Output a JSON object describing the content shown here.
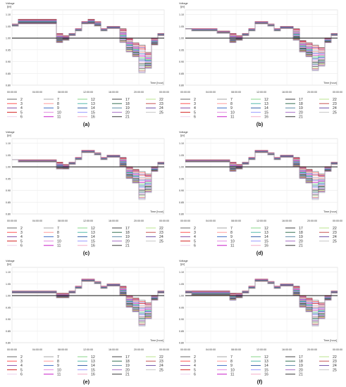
{
  "chart_data": [
    {
      "panel_label": "(a)",
      "type": "line",
      "step": true,
      "ylabel": "Voltage",
      "yunit": "[pu]",
      "xlabel": "Time [hour]",
      "ylim": [
        0.8,
        1.12
      ],
      "yticks": [
        "1.10",
        "1.05",
        "1.00",
        "0.95",
        "0.90",
        "0.85",
        "0.80"
      ],
      "xticks": [
        "00:00:00",
        "04:00:00",
        "08:00:00",
        "12:00:00",
        "16:00:00",
        "20:00:00",
        "00:00:00"
      ],
      "reference_line": 1.0,
      "x": [
        0,
        1,
        2,
        3,
        4,
        5,
        6,
        7,
        8,
        9,
        10,
        11,
        12,
        13,
        14,
        15,
        16,
        17,
        18,
        19,
        20,
        21,
        22,
        23
      ],
      "series": [
        {
          "name": "2",
          "values": [
            1.06,
            1.08,
            1.08,
            1.08,
            1.08,
            1.08,
            1.08,
            1.02,
            1.01,
            1.02,
            1.04,
            1.07,
            1.08,
            1.07,
            1.04,
            1.05,
            1.05,
            1.04,
            1.0,
            0.98,
            0.97,
            0.94,
            1.0,
            1.02
          ]
        },
        {
          "name": "25",
          "values": [
            1.05,
            1.06,
            1.06,
            1.06,
            1.06,
            1.06,
            1.06,
            0.98,
            0.99,
            1.01,
            1.03,
            1.06,
            1.06,
            1.05,
            1.03,
            1.04,
            1.04,
            0.98,
            0.94,
            0.92,
            0.85,
            0.87,
            0.97,
            1.01
          ]
        }
      ]
    },
    {
      "panel_label": "(b)",
      "type": "line",
      "step": true,
      "ylabel": "Voltage",
      "yunit": "[pu]",
      "xlabel": "Time [hour]",
      "ylim": [
        0.8,
        1.12
      ],
      "yticks": [
        "1.10",
        "1.05",
        "1.00",
        "0.95",
        "0.90",
        "0.85",
        "0.80"
      ],
      "xticks": [
        "00:00:00",
        "04:00:00",
        "08:00:00",
        "12:00:00",
        "16:00:00",
        "20:00:00",
        "00:00:00"
      ],
      "reference_line": 1.0,
      "x": [
        0,
        1,
        2,
        3,
        4,
        5,
        6,
        7,
        8,
        9,
        10,
        11,
        12,
        13,
        14,
        15,
        16,
        17,
        18,
        19,
        20,
        21,
        22,
        23
      ],
      "series": [
        {
          "name": "2",
          "values": [
            1.04,
            1.04,
            1.04,
            1.04,
            1.04,
            1.03,
            1.03,
            1.02,
            1.01,
            1.02,
            1.04,
            1.07,
            1.07,
            1.06,
            1.04,
            1.05,
            1.05,
            1.04,
            0.99,
            0.98,
            0.97,
            0.96,
            1.0,
            1.02
          ]
        },
        {
          "name": "25",
          "values": [
            1.04,
            1.03,
            1.03,
            1.03,
            1.03,
            1.02,
            1.02,
            0.98,
            0.99,
            1.01,
            1.03,
            1.06,
            1.06,
            1.05,
            1.03,
            1.04,
            1.04,
            0.99,
            0.94,
            0.92,
            0.86,
            0.88,
            0.98,
            1.01
          ]
        }
      ]
    },
    {
      "panel_label": "(c)",
      "type": "line",
      "step": true,
      "ylabel": "Voltage",
      "yunit": "[pu]",
      "xlabel": "Time [hour]",
      "ylim": [
        0.8,
        1.12
      ],
      "yticks": [
        "1.10",
        "1.05",
        "1.00",
        "0.95",
        "0.90",
        "0.85",
        "0.80"
      ],
      "xticks": [
        "00:00:00",
        "04:00:00",
        "08:00:00",
        "12:00:00",
        "16:00:00",
        "20:00:00",
        "00:00:00"
      ],
      "reference_line": 1.0,
      "x": [
        0,
        1,
        2,
        3,
        4,
        5,
        6,
        7,
        8,
        9,
        10,
        11,
        12,
        13,
        14,
        15,
        16,
        17,
        18,
        19,
        20,
        21,
        22,
        23
      ],
      "series": [
        {
          "name": "2",
          "values": [
            1.03,
            1.03,
            1.03,
            1.03,
            1.03,
            1.03,
            1.03,
            1.02,
            1.01,
            1.02,
            1.04,
            1.07,
            1.07,
            1.06,
            1.04,
            1.05,
            1.05,
            1.04,
            1.0,
            0.99,
            0.98,
            0.97,
            1.0,
            1.02
          ]
        },
        {
          "name": "25",
          "values": [
            1.03,
            1.02,
            1.02,
            1.02,
            1.02,
            1.02,
            1.02,
            0.99,
            0.99,
            1.01,
            1.03,
            1.06,
            1.06,
            1.05,
            1.03,
            1.04,
            1.04,
            1.0,
            0.95,
            0.93,
            0.86,
            0.89,
            0.98,
            1.01
          ]
        }
      ]
    },
    {
      "panel_label": "(d)",
      "type": "line",
      "step": true,
      "ylabel": "Voltage",
      "yunit": "[pu]",
      "xlabel": "Time [hour]",
      "ylim": [
        0.8,
        1.12
      ],
      "yticks": [
        "1.10",
        "1.05",
        "1.00",
        "0.95",
        "0.90",
        "0.85",
        "0.80"
      ],
      "xticks": [
        "00:00:00",
        "04:00:00",
        "08:00:00",
        "12:00:00",
        "16:00:00",
        "20:00:00",
        "00:00:00"
      ],
      "reference_line": 1.0,
      "x": [
        0,
        1,
        2,
        3,
        4,
        5,
        6,
        7,
        8,
        9,
        10,
        11,
        12,
        13,
        14,
        15,
        16,
        17,
        18,
        19,
        20,
        21,
        22,
        23
      ],
      "series": [
        {
          "name": "2",
          "values": [
            1.03,
            1.03,
            1.03,
            1.03,
            1.03,
            1.03,
            1.03,
            1.02,
            1.01,
            1.02,
            1.04,
            1.07,
            1.07,
            1.06,
            1.04,
            1.05,
            1.05,
            1.04,
            1.0,
            0.99,
            0.98,
            0.97,
            1.0,
            1.02
          ]
        },
        {
          "name": "25",
          "values": [
            1.02,
            1.02,
            1.02,
            1.02,
            1.02,
            1.02,
            1.02,
            0.98,
            0.99,
            1.01,
            1.03,
            1.06,
            1.06,
            1.05,
            1.03,
            1.04,
            1.04,
            1.0,
            0.95,
            0.93,
            0.86,
            0.89,
            0.98,
            1.01
          ]
        }
      ]
    },
    {
      "panel_label": "(e)",
      "type": "line",
      "step": true,
      "ylabel": "Voltage",
      "yunit": "[pu]",
      "xlabel": "Time [hour]",
      "ylim": [
        0.8,
        1.12
      ],
      "yticks": [
        "1.10",
        "1.05",
        "1.00",
        "0.95",
        "0.90",
        "0.85",
        "0.80"
      ],
      "xticks": [
        "00:00:00",
        "04:00:00",
        "08:00:00",
        "12:00:00",
        "16:00:00",
        "20:00:00",
        "00:00:00"
      ],
      "reference_line": 1.0,
      "x": [
        0,
        1,
        2,
        3,
        4,
        5,
        6,
        7,
        8,
        9,
        10,
        11,
        12,
        13,
        14,
        15,
        16,
        17,
        18,
        19,
        20,
        21,
        22,
        23
      ],
      "series": [
        {
          "name": "2",
          "values": [
            1.02,
            1.02,
            1.02,
            1.02,
            1.02,
            1.02,
            1.02,
            1.01,
            1.01,
            1.02,
            1.04,
            1.07,
            1.07,
            1.06,
            1.04,
            1.05,
            1.05,
            1.04,
            1.0,
            0.99,
            0.98,
            0.97,
            1.0,
            1.02
          ]
        },
        {
          "name": "25",
          "values": [
            1.01,
            1.01,
            1.01,
            1.01,
            1.01,
            1.01,
            1.01,
            0.99,
            0.99,
            1.01,
            1.03,
            1.06,
            1.06,
            1.05,
            1.03,
            1.04,
            1.04,
            1.0,
            0.95,
            0.93,
            0.87,
            0.9,
            0.98,
            1.01
          ]
        }
      ]
    },
    {
      "panel_label": "(f)",
      "type": "line",
      "step": true,
      "ylabel": "Voltage",
      "yunit": "[pu]",
      "xlabel": "Time [hour]",
      "ylim": [
        0.8,
        1.12
      ],
      "yticks": [
        "1.10",
        "1.05",
        "1.00",
        "0.95",
        "0.90",
        "0.85",
        "0.80"
      ],
      "xticks": [
        "00:00:00",
        "04:00:00",
        "08:00:00",
        "12:00:00",
        "16:00:00",
        "20:00:00",
        "00:00:00"
      ],
      "reference_line": 1.0,
      "x": [
        0,
        1,
        2,
        3,
        4,
        5,
        6,
        7,
        8,
        9,
        10,
        11,
        12,
        13,
        14,
        15,
        16,
        17,
        18,
        19,
        20,
        21,
        22,
        23
      ],
      "series": [
        {
          "name": "2",
          "values": [
            1.02,
            1.02,
            1.02,
            1.02,
            1.02,
            1.02,
            1.02,
            1.01,
            1.01,
            1.02,
            1.04,
            1.07,
            1.07,
            1.06,
            1.04,
            1.05,
            1.05,
            1.04,
            1.0,
            0.99,
            0.98,
            0.97,
            1.0,
            1.02
          ]
        },
        {
          "name": "25",
          "values": [
            1.01,
            1.0,
            1.0,
            1.0,
            1.0,
            1.0,
            1.0,
            0.98,
            0.99,
            1.01,
            1.03,
            1.06,
            1.06,
            1.05,
            1.03,
            1.04,
            1.04,
            1.0,
            0.95,
            0.93,
            0.87,
            0.9,
            0.98,
            1.01
          ]
        }
      ]
    }
  ],
  "legend": {
    "columns": [
      [
        "2",
        "3",
        "4",
        "5",
        "6"
      ],
      [
        "7",
        "8",
        "9",
        "10",
        "11"
      ],
      [
        "12",
        "13",
        "14",
        "15",
        "16"
      ],
      [
        "17",
        "18",
        "19",
        "20",
        "21"
      ],
      [
        "22",
        "23",
        "24",
        "25"
      ]
    ],
    "colors": {
      "2": "#5b5b5b",
      "3": "#ff4040",
      "4": "#7b3fa0",
      "5": "#d01010",
      "6": "#e8c8e8",
      "7": "#9a9a9a",
      "8": "#ff9090",
      "9": "#3060c0",
      "10": "#e080e0",
      "11": "#c000c0",
      "12": "#7ad07a",
      "13": "#40b0a0",
      "14": "#2050a0",
      "15": "#9090ff",
      "16": "#f0a0c0",
      "17": "#303030",
      "18": "#206040",
      "19": "#5080a0",
      "20": "#a060c0",
      "21": "#202020",
      "22": "#b0e080",
      "23": "#c04040",
      "24": "#6040a0",
      "25": "#c0c0c0"
    }
  }
}
